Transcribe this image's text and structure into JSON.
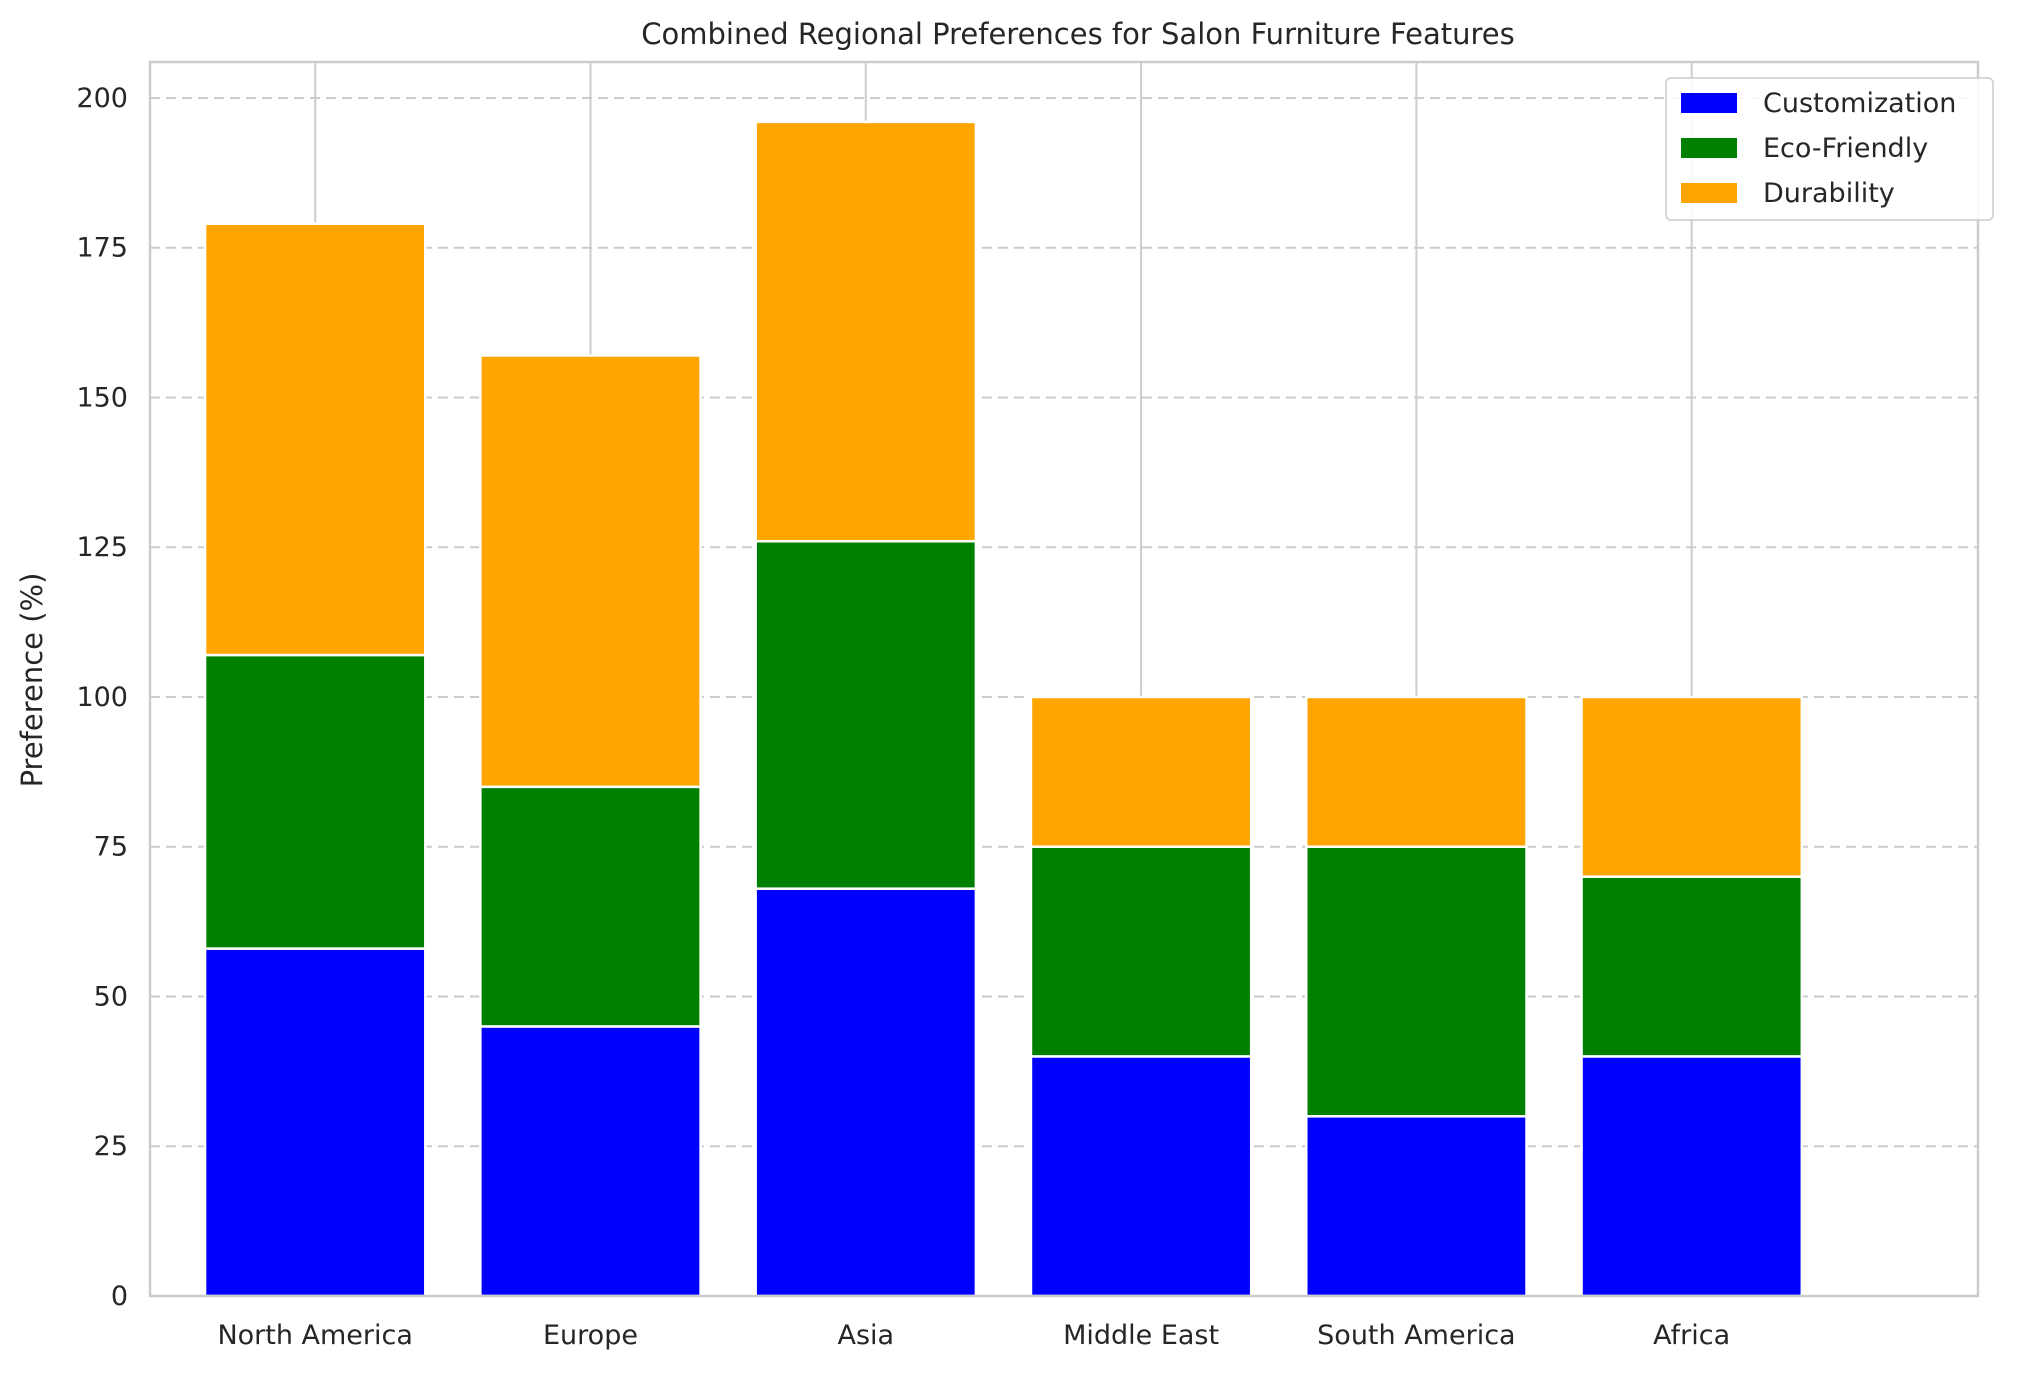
{
  "chart_data": {
    "type": "bar",
    "stacked": true,
    "title": "Combined Regional Preferences for Salon Furniture Features",
    "xlabel": "",
    "ylabel": "Preference (%)",
    "categories": [
      "North America",
      "Europe",
      "Asia",
      "Middle East",
      "South America",
      "Africa"
    ],
    "series": [
      {
        "name": "Customization",
        "color": "#0000ff",
        "values": [
          58,
          45,
          68,
          40,
          30,
          40
        ]
      },
      {
        "name": "Eco-Friendly",
        "color": "#008000",
        "values": [
          49,
          40,
          58,
          35,
          45,
          30
        ]
      },
      {
        "name": "Durability",
        "color": "#ffa500",
        "values": [
          72,
          72,
          70,
          25,
          25,
          30
        ]
      }
    ],
    "ylim": [
      0,
      206
    ],
    "yticks": [
      0,
      25,
      50,
      75,
      100,
      125,
      150,
      175,
      200
    ],
    "grid": {
      "y": true,
      "y_style": "dashed",
      "x": true,
      "x_style": "solid"
    },
    "legend": {
      "placement": "top-right"
    }
  }
}
